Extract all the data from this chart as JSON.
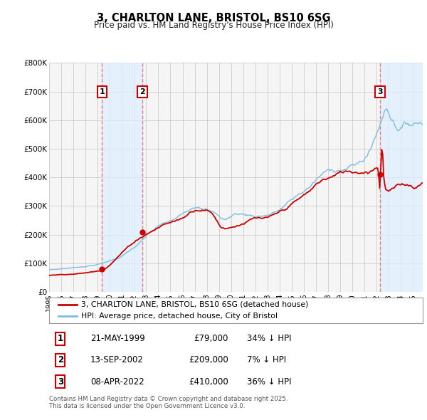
{
  "title": "3, CHARLTON LANE, BRISTOL, BS10 6SG",
  "subtitle": "Price paid vs. HM Land Registry's House Price Index (HPI)",
  "hpi_label": "HPI: Average price, detached house, City of Bristol",
  "property_label": "3, CHARLTON LANE, BRISTOL, BS10 6SG (detached house)",
  "hpi_color": "#7bbde0",
  "property_color": "#cc0000",
  "sale_color": "#cc0000",
  "vline_color": "#e88080",
  "shade_color": "#ddeeff",
  "background_color": "#ffffff",
  "plot_bg_color": "#f5f5f5",
  "grid_color": "#cccccc",
  "ylim": [
    0,
    800000
  ],
  "xlim_start": 1995.0,
  "xlim_end": 2025.8,
  "sales": [
    {
      "date": 1999.37,
      "price": 79000,
      "label": "1",
      "hpi_pct": "34% ↓ HPI",
      "date_str": "21-MAY-1999"
    },
    {
      "date": 2002.71,
      "price": 209000,
      "label": "2",
      "hpi_pct": "7% ↓ HPI",
      "date_str": "13-SEP-2002"
    },
    {
      "date": 2022.27,
      "price": 410000,
      "label": "3",
      "hpi_pct": "36% ↓ HPI",
      "date_str": "08-APR-2022"
    }
  ],
  "footer": "Contains HM Land Registry data © Crown copyright and database right 2025.\nThis data is licensed under the Open Government Licence v3.0.",
  "yticks": [
    0,
    100000,
    200000,
    300000,
    400000,
    500000,
    600000,
    700000,
    800000
  ],
  "ytick_labels": [
    "£0",
    "£100K",
    "£200K",
    "£300K",
    "£400K",
    "£500K",
    "£600K",
    "£700K",
    "£800K"
  ]
}
